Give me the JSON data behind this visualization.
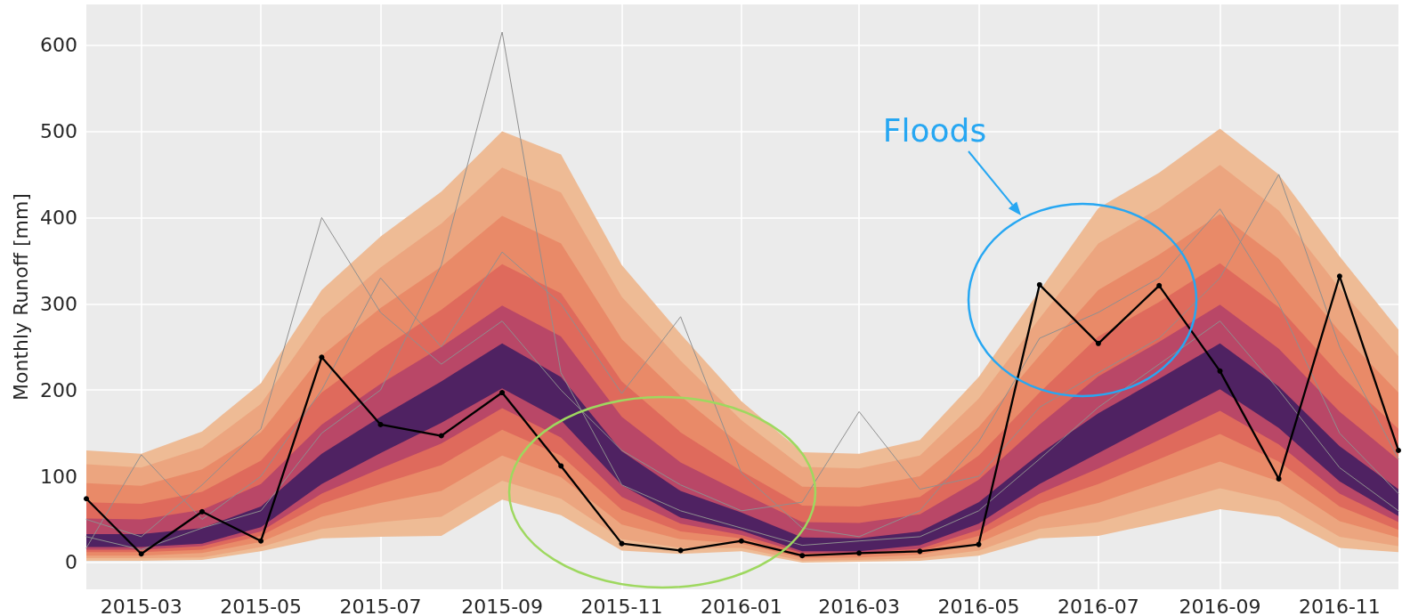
{
  "chart_data": {
    "type": "line",
    "ylabel": "Monthly Runoff [mm]",
    "x": [
      "2015-02",
      "2015-03",
      "2015-04",
      "2015-05",
      "2015-06",
      "2015-07",
      "2015-08",
      "2015-09",
      "2015-10",
      "2015-11",
      "2015-12",
      "2016-01",
      "2016-02",
      "2016-03",
      "2016-04",
      "2016-05",
      "2016-06",
      "2016-07",
      "2016-08",
      "2016-09",
      "2016-10",
      "2016-11",
      "2016-12"
    ],
    "xlim": [
      "2015-02-01",
      "2016-12-01"
    ],
    "xticks": [
      "2015-03",
      "2015-05",
      "2015-07",
      "2015-09",
      "2015-11",
      "2016-01",
      "2016-03",
      "2016-05",
      "2016-07",
      "2016-09",
      "2016-11"
    ],
    "ylim": [
      -31,
      647
    ],
    "yticks": [
      0,
      100,
      200,
      300,
      400,
      500,
      600
    ],
    "grid": true,
    "series": [
      {
        "color": "#eebb95",
        "values": [
          null,
          null,
          null,
          null,
          null,
          null,
          null,
          null,
          null,
          null,
          null,
          null,
          null,
          null,
          null,
          null,
          null,
          null,
          null,
          null,
          null,
          null,
          null
        ],
        "upper": [
          130,
          126,
          152,
          208,
          316,
          378,
          430,
          500,
          473,
          345,
          265,
          187,
          128,
          126,
          142,
          215,
          315,
          411,
          452,
          503,
          450,
          355,
          270
        ],
        "lower": [
          2,
          2,
          3,
          13,
          28,
          30,
          31,
          73,
          55,
          14,
          10,
          13,
          0,
          1,
          2,
          8,
          28,
          31,
          46,
          62,
          53,
          17,
          12
        ]
      },
      {
        "color": "#eca57f",
        "values": [
          null,
          null,
          null,
          null,
          null,
          null,
          null,
          null,
          null,
          null,
          null,
          null,
          null,
          null,
          null,
          null,
          null,
          null,
          null,
          null,
          null,
          null,
          null
        ],
        "upper": [
          114,
          110,
          133,
          184,
          284,
          342,
          393,
          458,
          429,
          308,
          234,
          165,
          111,
          109,
          124,
          190,
          283,
          370,
          411,
          461,
          408,
          318,
          239
        ],
        "lower": [
          5,
          5,
          6,
          18,
          39,
          47,
          53,
          95,
          74,
          27,
          17,
          17,
          2,
          3,
          5,
          14,
          39,
          47,
          66,
          86,
          71,
          30,
          19
        ]
      },
      {
        "color": "#e98a68",
        "values": [
          null,
          null,
          null,
          null,
          null,
          null,
          null,
          null,
          null,
          null,
          null,
          null,
          null,
          null,
          null,
          null,
          null,
          null,
          null,
          null,
          null,
          null,
          null
        ],
        "upper": [
          92,
          89,
          108,
          151,
          240,
          295,
          343,
          402,
          370,
          259,
          193,
          136,
          88,
          87,
          100,
          157,
          240,
          316,
          357,
          404,
          352,
          268,
          197
        ],
        "lower": [
          8,
          8,
          11,
          24,
          53,
          69,
          83,
          124,
          99,
          44,
          27,
          22,
          5,
          6,
          9,
          23,
          53,
          69,
          93,
          117,
          94,
          48,
          29
        ]
      },
      {
        "color": "#df6a5c",
        "values": [
          null,
          null,
          null,
          null,
          null,
          null,
          null,
          null,
          null,
          null,
          null,
          null,
          null,
          null,
          null,
          null,
          null,
          null,
          null,
          null,
          null,
          null,
          null
        ],
        "upper": [
          70,
          68,
          82,
          118,
          197,
          247,
          293,
          346,
          312,
          210,
          151,
          106,
          66,
          65,
          76,
          124,
          197,
          262,
          302,
          347,
          296,
          218,
          155
        ],
        "lower": [
          12,
          12,
          15,
          31,
          68,
          91,
          113,
          154,
          124,
          61,
          36,
          28,
          8,
          9,
          13,
          31,
          68,
          91,
          120,
          149,
          117,
          65,
          38
        ]
      },
      {
        "color": "#b94767",
        "values": [
          null,
          null,
          null,
          null,
          null,
          null,
          null,
          null,
          null,
          null,
          null,
          null,
          null,
          null,
          null,
          null,
          null,
          null,
          null,
          null,
          null,
          null,
          null
        ],
        "upper": [
          51,
          50,
          61,
          91,
          160,
          207,
          250,
          298,
          262,
          169,
          116,
          81,
          47,
          46,
          56,
          96,
          160,
          216,
          256,
          299,
          248,
          175,
          119
        ],
        "lower": [
          15,
          15,
          19,
          36,
          80,
          109,
          138,
          179,
          145,
          76,
          45,
          32,
          11,
          11,
          16,
          38,
          80,
          109,
          142,
          176,
          137,
          80,
          47
        ]
      },
      {
        "color": "#4f2262",
        "values": [
          null,
          null,
          null,
          null,
          null,
          null,
          null,
          null,
          null,
          null,
          null,
          null,
          null,
          null,
          null,
          null,
          null,
          null,
          null,
          null,
          null,
          null,
          null
        ],
        "upper": [
          33,
          33,
          40,
          65,
          126,
          169,
          210,
          254,
          215,
          129,
          83,
          58,
          29,
          28,
          36,
          70,
          126,
          173,
          213,
          254,
          204,
          135,
          85
        ],
        "lower": [
          18,
          18,
          22,
          41,
          91,
          127,
          162,
          202,
          165,
          90,
          52,
          37,
          13,
          13,
          20,
          45,
          91,
          127,
          164,
          201,
          156,
          94,
          54
        ]
      },
      {
        "color": "#8f8f8f",
        "values": [
          30,
          15,
          40,
          60,
          150,
          200,
          345,
          615,
          220,
          90,
          60,
          40,
          20,
          25,
          30,
          60,
          120,
          180,
          230,
          280,
          200,
          110,
          60
        ]
      },
      {
        "color": "#8f8f8f",
        "values": [
          50,
          30,
          90,
          155,
          400,
          290,
          230,
          280,
          200,
          130,
          90,
          60,
          70,
          175,
          85,
          100,
          180,
          220,
          260,
          330,
          450,
          250,
          120
        ]
      },
      {
        "color": "#8f8f8f",
        "values": [
          17,
          125,
          50,
          100,
          200,
          330,
          250,
          360,
          300,
          196,
          285,
          104,
          40,
          30,
          60,
          140,
          260,
          290,
          330,
          410,
          300,
          150,
          80
        ]
      },
      {
        "color": "#000000",
        "marker": "circle",
        "values": [
          74,
          10,
          59,
          25,
          238,
          160,
          147,
          197,
          112,
          22,
          14,
          25,
          8,
          11,
          13,
          21,
          322,
          254,
          321,
          222,
          97,
          332,
          130
        ]
      }
    ],
    "annotations": [
      "Floods"
    ]
  }
}
